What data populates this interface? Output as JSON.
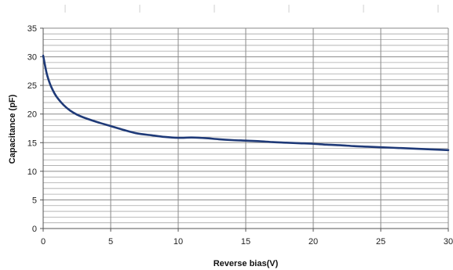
{
  "chart_data": {
    "type": "line",
    "title": "",
    "xlabel": "Reverse bias(V)",
    "ylabel": "Capacitance (pF)",
    "xlim": [
      0,
      30
    ],
    "ylim": [
      0,
      35
    ],
    "x_ticks": [
      0,
      5,
      10,
      15,
      20,
      25,
      30
    ],
    "y_ticks": [
      0,
      5,
      10,
      15,
      20,
      25,
      30,
      35
    ],
    "grid": true,
    "legend": "none",
    "series": [
      {
        "color": "#1f3a78",
        "x": [
          0,
          0.25,
          0.5,
          0.75,
          1,
          1.5,
          2,
          2.5,
          3,
          4,
          5,
          6,
          7,
          8,
          9,
          10,
          11,
          12,
          13,
          14,
          15,
          16,
          17,
          18,
          19,
          20,
          21,
          22,
          23,
          24,
          25,
          26,
          27,
          28,
          29,
          30
        ],
        "y": [
          30.2,
          27.2,
          25.3,
          24.0,
          23.0,
          21.6,
          20.6,
          19.9,
          19.4,
          18.6,
          17.9,
          17.2,
          16.6,
          16.3,
          16.0,
          15.85,
          15.9,
          15.8,
          15.6,
          15.45,
          15.35,
          15.25,
          15.1,
          15.0,
          14.9,
          14.8,
          14.65,
          14.55,
          14.4,
          14.3,
          14.2,
          14.1,
          14.0,
          13.9,
          13.8,
          13.7
        ]
      }
    ]
  }
}
